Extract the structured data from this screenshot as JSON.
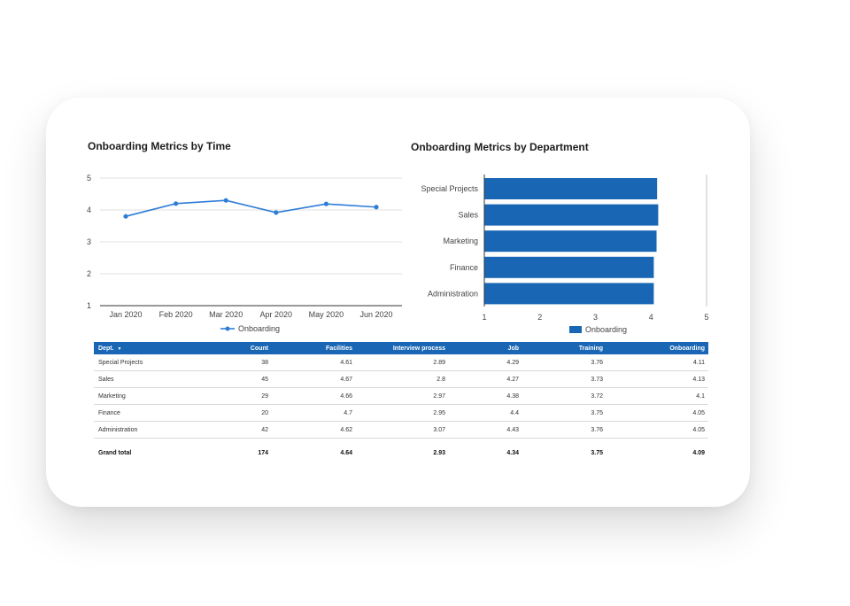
{
  "colors": {
    "line": "#2e7dd7",
    "bar": "#1866b4",
    "header_bg": "#1866b4",
    "grid": "#d9d9d9"
  },
  "chart_data": [
    {
      "type": "line",
      "title": "Onboarding Metrics by Time",
      "x": [
        "Jan 2020",
        "Feb 2020",
        "Mar 2020",
        "Apr 2020",
        "May 2020",
        "Jun 2020"
      ],
      "series": [
        {
          "name": "Onboarding",
          "values": [
            3.8,
            4.2,
            4.3,
            3.92,
            4.19,
            4.09
          ]
        }
      ],
      "ylim": [
        1,
        5
      ],
      "yticks": [
        "1",
        "2",
        "3",
        "4",
        "5"
      ],
      "grid": true,
      "legend": "bottom"
    },
    {
      "type": "bar",
      "orientation": "horizontal",
      "title": "Onboarding Metrics by Department",
      "categories": [
        "Special Projects",
        "Sales",
        "Marketing",
        "Finance",
        "Administration"
      ],
      "series": [
        {
          "name": "Onboarding",
          "values": [
            4.11,
            4.13,
            4.1,
            4.05,
            4.05
          ]
        }
      ],
      "xlim": [
        1,
        5
      ],
      "xticks": [
        "1",
        "2",
        "3",
        "4",
        "5"
      ],
      "legend": "bottom"
    },
    {
      "type": "table",
      "columns": [
        "Dept.",
        "Count",
        "Facilities",
        "Interview process",
        "Job",
        "Training",
        "Onboarding"
      ],
      "rows": [
        [
          "Special Projects",
          "38",
          "4.61",
          "2.89",
          "4.29",
          "3.76",
          "4.11"
        ],
        [
          "Sales",
          "45",
          "4.67",
          "2.8",
          "4.27",
          "3.73",
          "4.13"
        ],
        [
          "Marketing",
          "29",
          "4.66",
          "2.97",
          "4.38",
          "3.72",
          "4.1"
        ],
        [
          "Finance",
          "20",
          "4.7",
          "2.95",
          "4.4",
          "3.75",
          "4.05"
        ],
        [
          "Administration",
          "42",
          "4.62",
          "3.07",
          "4.43",
          "3.76",
          "4.05"
        ]
      ],
      "total": [
        "Grand total",
        "174",
        "4.64",
        "2.93",
        "4.34",
        "3.75",
        "4.09"
      ],
      "sort_icon": "▼"
    }
  ]
}
